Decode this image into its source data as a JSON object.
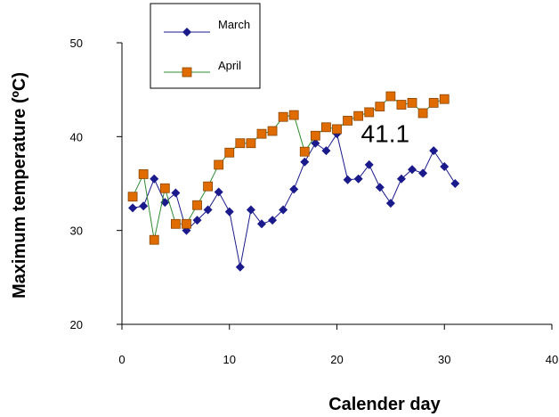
{
  "chart_data": {
    "type": "line",
    "title": "",
    "xlabel": "Calender day",
    "ylabel": "Maximum temperature (ºC)",
    "xlim": [
      0,
      40
    ],
    "ylim": [
      20,
      50
    ],
    "x_ticks": [
      "0",
      "10",
      "20",
      "30",
      "40"
    ],
    "y_ticks": [
      "20",
      "30",
      "40",
      "50"
    ],
    "grid": false,
    "legend_position": "top-left",
    "annotations": [
      {
        "text": "41.1",
        "x": 24.5,
        "y": 39.4
      }
    ],
    "series": [
      {
        "name": "March",
        "color": "#1a1a8c",
        "marker": "diamond",
        "x": [
          1,
          2,
          3,
          4,
          5,
          6,
          7,
          8,
          9,
          10,
          11,
          12,
          13,
          14,
          15,
          16,
          17,
          18,
          19,
          20,
          21,
          22,
          23,
          24,
          25,
          26,
          27,
          28,
          29,
          30,
          31
        ],
        "y": [
          32.4,
          32.6,
          35.5,
          33,
          34,
          30,
          31.1,
          32.2,
          34.1,
          32,
          26.1,
          32.2,
          30.7,
          31.1,
          32.2,
          34.4,
          37.3,
          39.3,
          38.5,
          40.3,
          35.4,
          35.5,
          37,
          34.6,
          32.9,
          35.5,
          36.5,
          36.1,
          38.5,
          36.8,
          35
        ]
      },
      {
        "name": "April",
        "color": "#e06c00",
        "line_color": "#2e8b2e",
        "marker": "square",
        "x": [
          1,
          2,
          3,
          4,
          5,
          6,
          7,
          8,
          9,
          10,
          11,
          12,
          13,
          14,
          15,
          16,
          17,
          18,
          19,
          20,
          21,
          22,
          23,
          24,
          25,
          26,
          27,
          28,
          29,
          30
        ],
        "y": [
          33.6,
          36,
          29,
          34.5,
          30.7,
          30.7,
          32.7,
          34.7,
          37,
          38.3,
          39.3,
          39.3,
          40.3,
          40.6,
          42.1,
          42.3,
          38.4,
          40.1,
          41,
          40.8,
          41.7,
          42.2,
          42.6,
          43.2,
          44.3,
          43.4,
          43.6,
          42.5,
          43.6,
          44
        ]
      }
    ]
  }
}
